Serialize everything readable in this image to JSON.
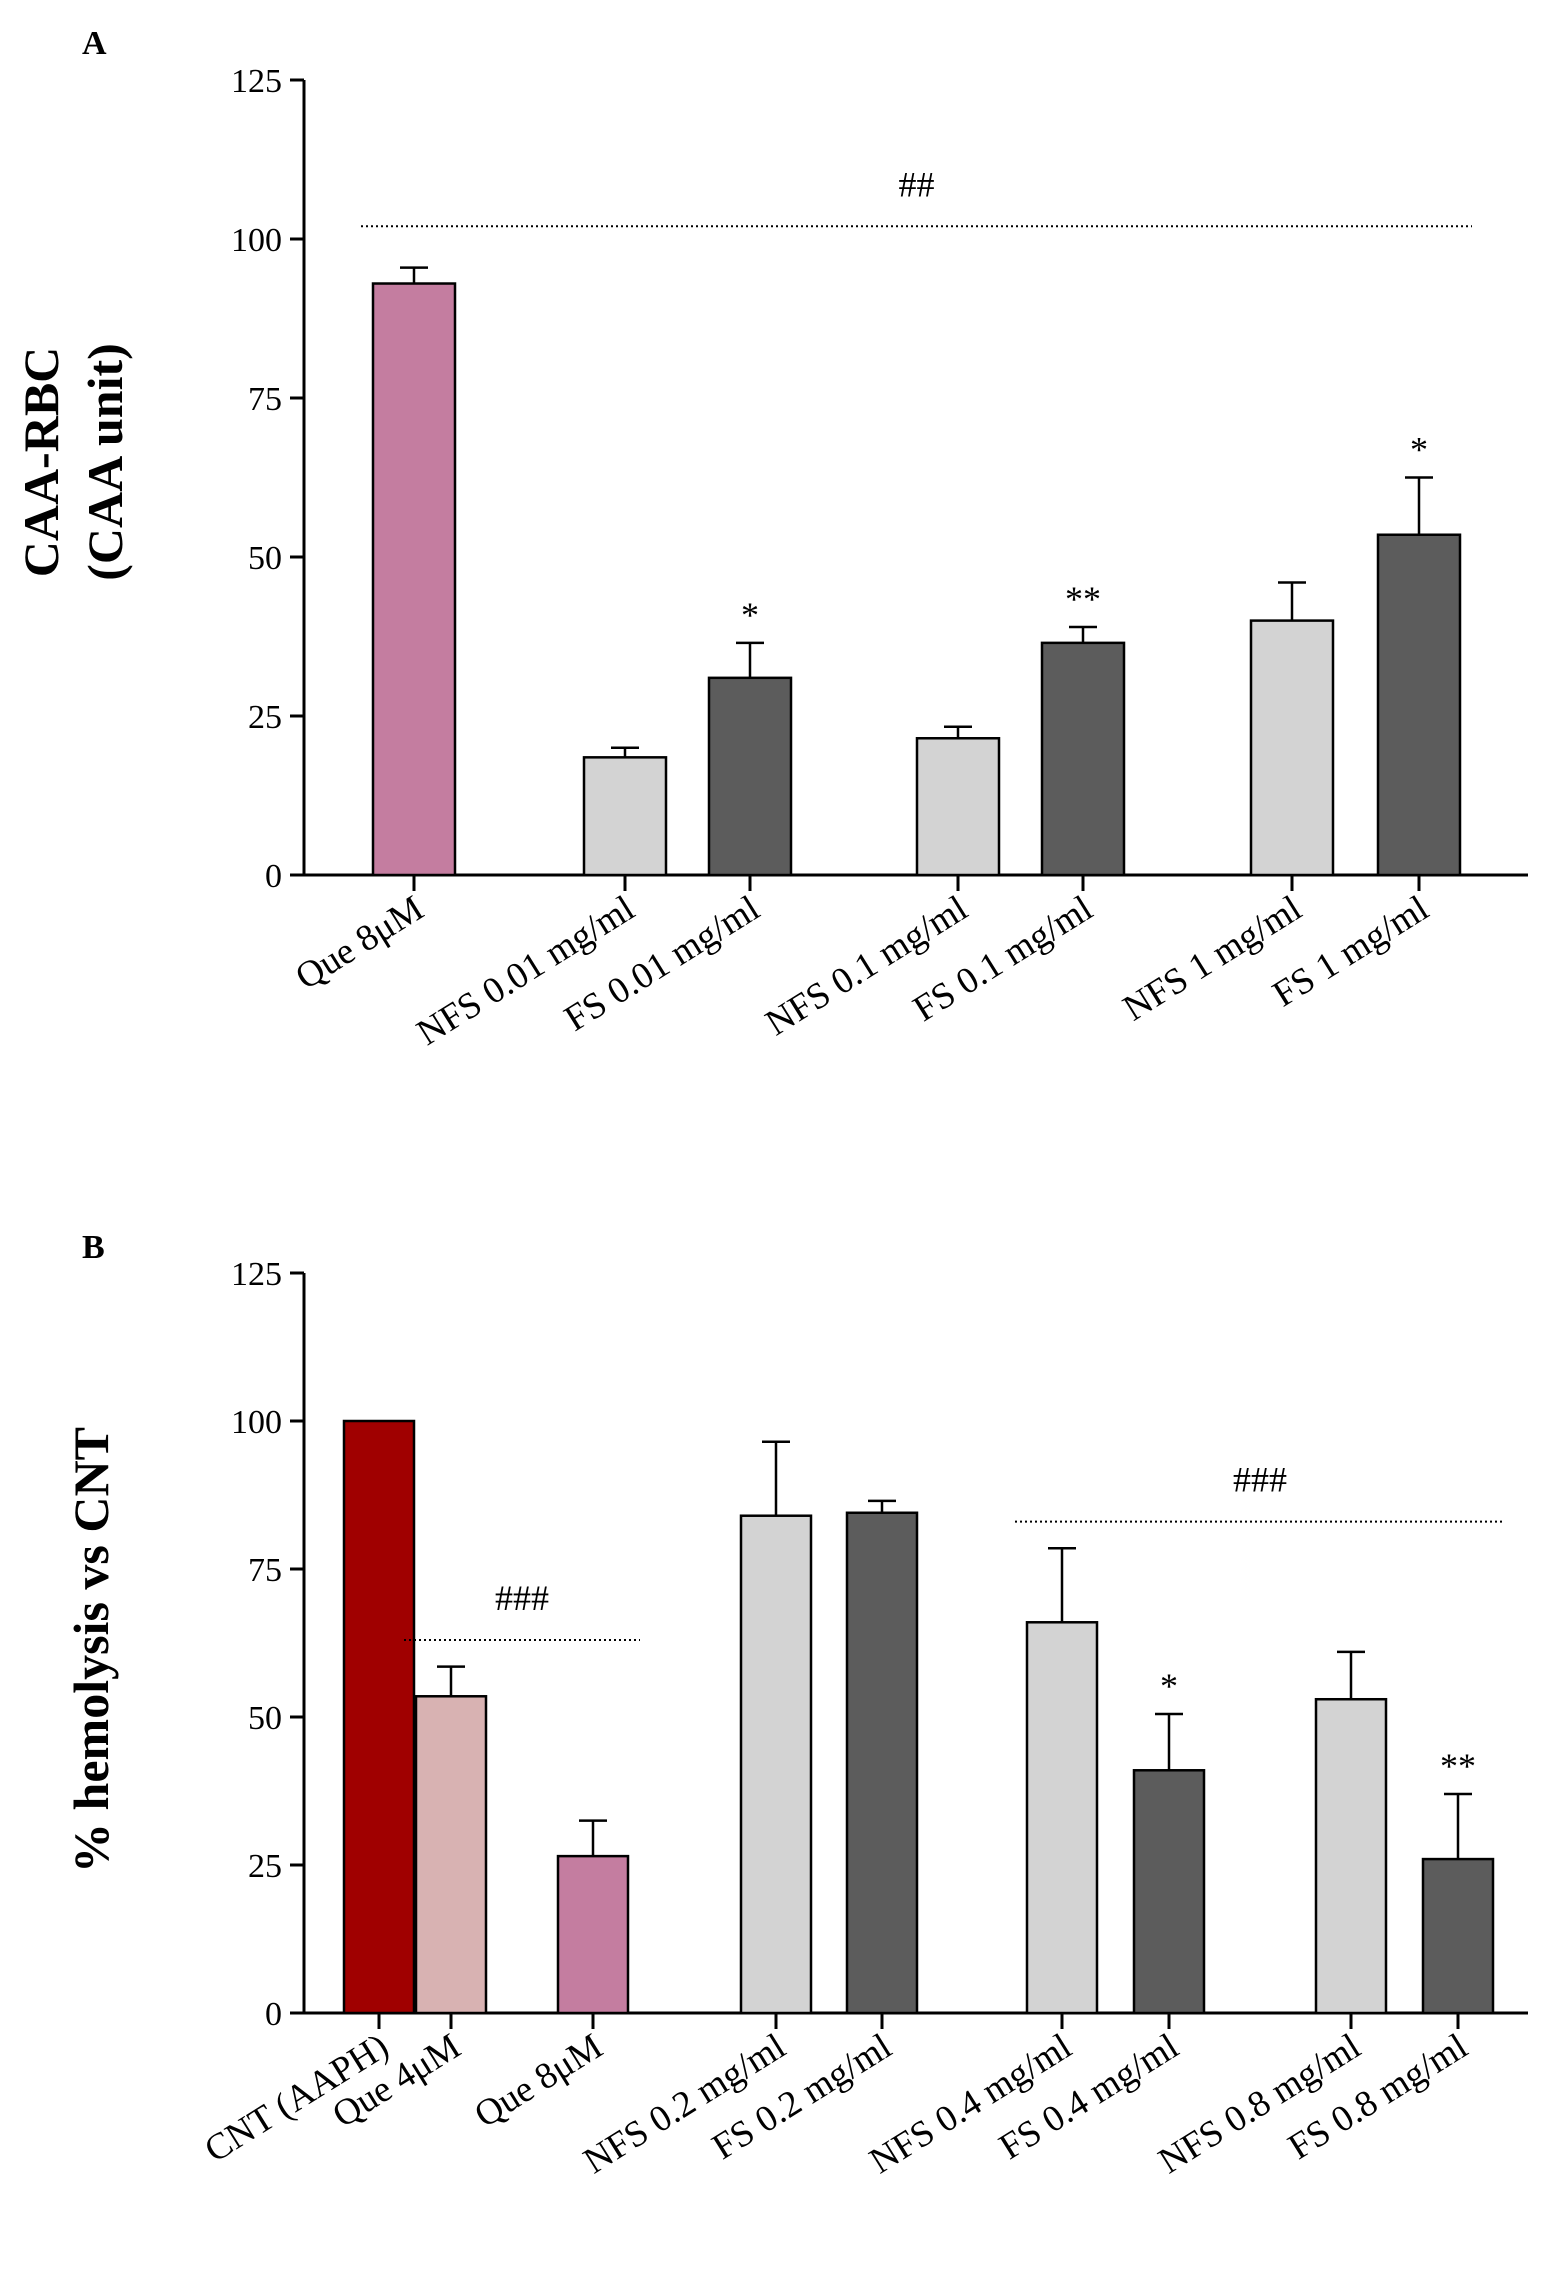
{
  "chart_data": [
    {
      "panel": "A",
      "type": "bar",
      "ylabel_lines": [
        "CAA-RBC",
        "(CAA unit)"
      ],
      "ylim": [
        0,
        125
      ],
      "yticks": [
        "0",
        "25",
        "50",
        "75",
        "100",
        "125"
      ],
      "categories": [
        "Que 8μM",
        "NFS 0.01 mg/ml",
        "FS 0.01 mg/ml",
        "NFS 0.1 mg/ml",
        "FS 0.1 mg/ml",
        "NFS 1 mg/ml",
        "FS 1 mg/ml"
      ],
      "values": [
        93,
        18.5,
        31,
        21.5,
        36.5,
        40,
        53.5
      ],
      "errors": [
        2.5,
        1.5,
        5.5,
        1.8,
        2.5,
        6,
        9
      ],
      "colors": [
        "#c47da0",
        "#d3d3d3",
        "#5c5c5c",
        "#d3d3d3",
        "#5c5c5c",
        "#d3d3d3",
        "#5c5c5c"
      ],
      "significance": [
        "",
        "",
        "*",
        "",
        "**",
        "",
        "*"
      ],
      "bracket": {
        "label": "##",
        "from_index": 0,
        "to_index": 6,
        "level": 102
      },
      "grid": false
    },
    {
      "panel": "B",
      "type": "bar",
      "ylabel_lines": [
        "% hemolysis vs CNT"
      ],
      "ylim": [
        0,
        125
      ],
      "yticks": [
        "0",
        "25",
        "50",
        "75",
        "100",
        "125"
      ],
      "categories": [
        "CNT (AAPH)",
        "Que 4μM",
        "Que 8μM",
        "NFS 0.2 mg/ml",
        "FS 0.2 mg/ml",
        "NFS 0.4 mg/ml",
        "FS 0.4 mg/ml",
        "NFS 0.8 mg/ml",
        "FS 0.8 mg/ml"
      ],
      "values": [
        100,
        53.5,
        26.5,
        84,
        84.5,
        66,
        41,
        53,
        26
      ],
      "errors": [
        0,
        5,
        6,
        12.5,
        2,
        12.5,
        9.5,
        8,
        11
      ],
      "colors": [
        "#a00000",
        "#d8b2b2",
        "#c47da0",
        "#d3d3d3",
        "#5c5c5c",
        "#d3d3d3",
        "#5c5c5c",
        "#d3d3d3",
        "#5c5c5c"
      ],
      "significance": [
        "",
        "",
        "",
        "",
        "",
        "",
        "*",
        "",
        "**"
      ],
      "brackets": [
        {
          "label": "###",
          "from_index": 1,
          "to_index": 2,
          "level": 63
        },
        {
          "label": "###",
          "from_index": 5,
          "to_index": 8,
          "level": 83
        }
      ],
      "grid": false
    }
  ]
}
